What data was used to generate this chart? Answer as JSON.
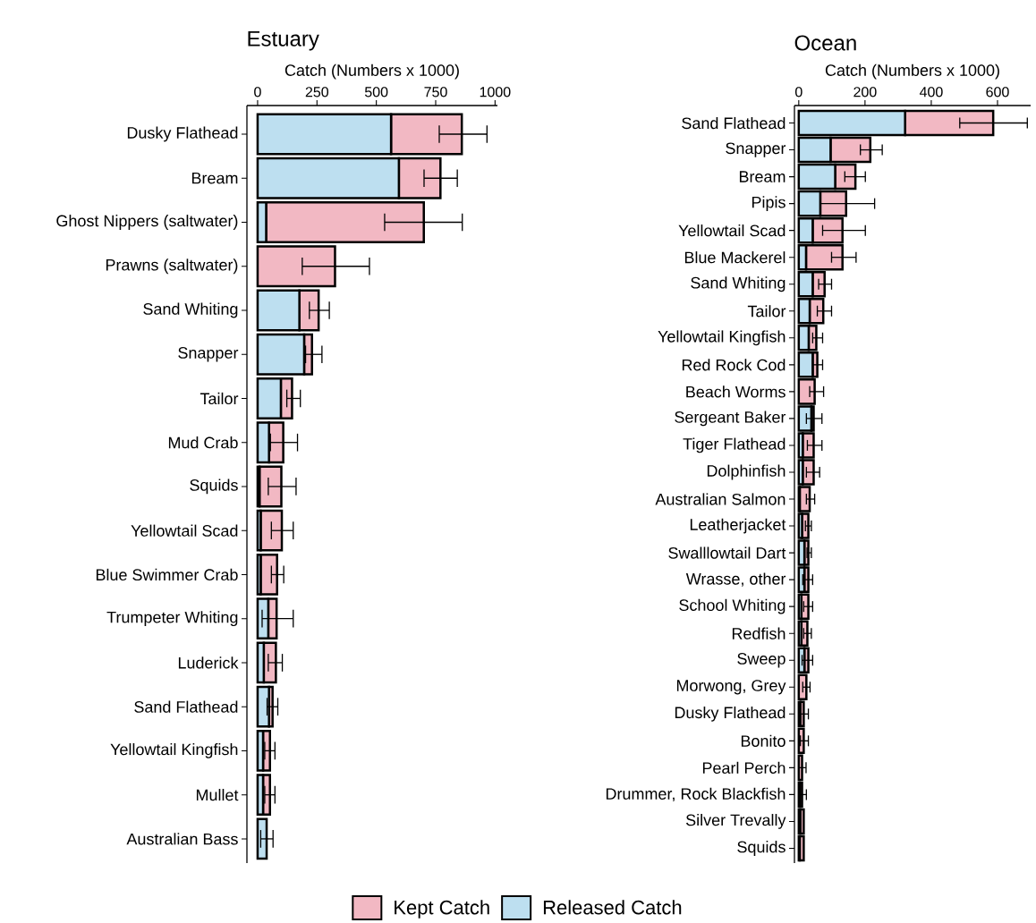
{
  "chart_data": [
    {
      "type": "bar",
      "title": "Estuary",
      "xlabel": "Catch (Numbers x 1000)",
      "orientation": "horizontal",
      "stacked": true,
      "legend": "bottom",
      "xlim": [
        -45,
        1010
      ],
      "xticks": [
        0,
        250,
        500,
        750,
        1000
      ],
      "categories": [
        "Dusky Flathead",
        "Bream",
        "Ghost Nippers (saltwater)",
        "Prawns (saltwater)",
        "Sand Whiting",
        "Snapper",
        "Tailor",
        "Mud Crab",
        "Squids",
        "Yellowtail Scad",
        "Blue Swimmer Crab",
        "Trumpeter Whiting",
        "Luderick",
        "Sand Flathead",
        "Yellowtail Kingfish",
        "Mullet",
        "Australian Bass"
      ],
      "series": [
        {
          "name": "Released Catch",
          "color": "#bddff0",
          "values": [
            562,
            595,
            36,
            0,
            176,
            196,
            98,
            48,
            8,
            13,
            13,
            45,
            26,
            48,
            23,
            23,
            38
          ]
        },
        {
          "name": "Kept Catch",
          "color": "#f2b8c3",
          "values": [
            298,
            175,
            664,
            326,
            81,
            33,
            47,
            60,
            92,
            89,
            69,
            35,
            51,
            15,
            29,
            29,
            0
          ],
          "errors": [
            [
              765,
              966
            ],
            [
              701,
              841
            ],
            [
              535,
              862
            ],
            [
              188,
              471
            ],
            [
              218,
              302
            ],
            [
              202,
              271
            ],
            [
              123,
              180
            ],
            [
              54,
              168
            ],
            [
              45,
              162
            ],
            [
              58,
              150
            ],
            [
              58,
              110
            ],
            [
              19,
              150
            ],
            [
              45,
              104
            ],
            [
              40,
              85
            ],
            [
              30,
              73
            ],
            [
              30,
              73
            ],
            [
              13,
              65
            ]
          ]
        }
      ]
    },
    {
      "type": "bar",
      "title": "Ocean",
      "xlabel": "Catch (Numbers x 1000)",
      "orientation": "horizontal",
      "stacked": true,
      "xlim": [
        -13,
        700
      ],
      "xticks": [
        0,
        200,
        400,
        600
      ],
      "categories": [
        "Sand Flathead",
        "Snapper",
        "Bream",
        "Pipis",
        "Yellowtail Scad",
        "Blue Mackerel",
        "Sand Whiting",
        "Tailor",
        "Yellowtail Kingfish",
        "Red Rock Cod",
        "Beach Worms",
        "Sergeant Baker",
        "Tiger Flathead",
        "Dolphinfish",
        "Australian Salmon",
        "Leatherjacket",
        "Swalllowtail Dart",
        "Wrasse, other",
        "School Whiting",
        "Redfish",
        "Sweep",
        "Morwong, Grey",
        "Dusky Flathead",
        "Bonito",
        "Pearl Perch",
        "Drummer, Rock Blackfish",
        "Silver Trevally",
        "Squids"
      ],
      "series": [
        {
          "color": "#bddff0",
          "values": [
            321,
            96,
            110,
            65,
            42,
            22,
            42,
            33,
            30,
            42,
            0,
            38,
            12,
            12,
            3,
            10,
            17,
            17,
            8,
            8,
            17,
            0,
            5,
            0,
            0,
            3,
            5,
            3
          ]
        },
        {
          "color": "#f2b8c3",
          "values": [
            266,
            120,
            61,
            78,
            90,
            110,
            36,
            41,
            23,
            14,
            48,
            7,
            33,
            33,
            30,
            19,
            12,
            12,
            21,
            18,
            12,
            23,
            10,
            15,
            10,
            7,
            10,
            12
          ],
          "errors": [
            [
              486,
              690
            ],
            [
              186,
              252
            ],
            [
              139,
              201
            ],
            [
              65,
              229
            ],
            [
              72,
              201
            ],
            [
              99,
              173
            ],
            [
              60,
              99
            ],
            [
              56,
              99
            ],
            [
              42,
              72
            ],
            [
              42,
              72
            ],
            [
              33,
              75
            ],
            [
              23,
              70
            ],
            [
              26,
              70
            ],
            [
              23,
              63
            ],
            [
              23,
              48
            ],
            [
              20,
              38
            ],
            [
              25,
              38
            ],
            [
              12,
              42
            ],
            [
              15,
              42
            ],
            [
              15,
              38
            ],
            [
              10,
              42
            ],
            [
              12,
              34
            ],
            [
              5,
              29
            ],
            [
              5,
              29
            ],
            [
              0,
              22
            ],
            [
              0,
              23
            ],
            null,
            null
          ]
        }
      ]
    }
  ]
}
